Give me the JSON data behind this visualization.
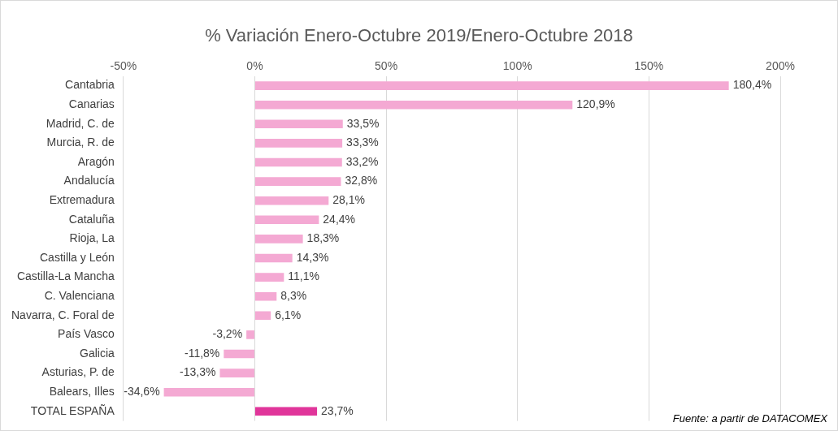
{
  "chart_data": {
    "type": "bar",
    "orientation": "horizontal",
    "title": "% Variación Enero-Octubre 2019/Enero-Octubre 2018",
    "categories": [
      "Cantabria",
      "Canarias",
      "Madrid, C. de",
      "Murcia, R. de",
      "Aragón",
      "Andalucía",
      "Extremadura",
      "Cataluña",
      "Rioja, La",
      "Castilla y León",
      "Castilla-La Mancha",
      "C. Valenciana",
      "Navarra, C. Foral de",
      "País Vasco",
      "Galicia",
      "Asturias, P. de",
      "Balears, Illes",
      "TOTAL ESPAÑA"
    ],
    "values": [
      180.4,
      120.9,
      33.5,
      33.3,
      33.2,
      32.8,
      28.1,
      24.4,
      18.3,
      14.3,
      11.1,
      8.3,
      6.1,
      -3.2,
      -11.8,
      -13.3,
      -34.6,
      23.7
    ],
    "colors": [
      "#f4a9d3",
      "#f4a9d3",
      "#f4a9d3",
      "#f4a9d3",
      "#f4a9d3",
      "#f4a9d3",
      "#f4a9d3",
      "#f4a9d3",
      "#f4a9d3",
      "#f4a9d3",
      "#f4a9d3",
      "#f4a9d3",
      "#f4a9d3",
      "#f4a9d3",
      "#f4a9d3",
      "#f4a9d3",
      "#f4a9d3",
      "#e0359a"
    ],
    "value_labels": [
      "180,4%",
      "120,9%",
      "33,5%",
      "33,3%",
      "33,2%",
      "32,8%",
      "28,1%",
      "24,4%",
      "18,3%",
      "14,3%",
      "11,1%",
      "8,3%",
      "6,1%",
      "-3,2%",
      "-11,8%",
      "-13,3%",
      "-34,6%",
      "23,7%"
    ],
    "xlim": [
      -50,
      200
    ],
    "xticks": [
      {
        "value": -50,
        "label": "-50%"
      },
      {
        "value": 0,
        "label": "0%"
      },
      {
        "value": 50,
        "label": "50%"
      },
      {
        "value": 100,
        "label": "100%"
      },
      {
        "value": 150,
        "label": "150%"
      },
      {
        "value": 200,
        "label": "200%"
      }
    ],
    "grid": "x",
    "legend": false,
    "annotations": [
      "Fuente: a partir de DATACOMEX"
    ]
  }
}
